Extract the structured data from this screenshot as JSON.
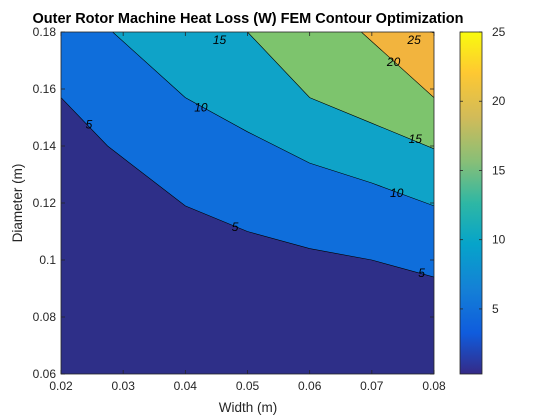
{
  "colors": {
    "band_0_5": "#2e2f88",
    "band_5_10": "#0f6edb",
    "band_10_15": "#0fa3c8",
    "band_15_20": "#7dc46d",
    "band_20_25": "#f2b43e",
    "contour_line": "#000000",
    "axis": "#262626"
  },
  "chart_data": {
    "type": "contour",
    "title": "Outer Rotor Machine Heat Loss (W) FEM Contour Optimization",
    "xlabel": "Width (m)",
    "ylabel": "Diameter (m)",
    "xlim": [
      0.02,
      0.08
    ],
    "ylim": [
      0.06,
      0.18
    ],
    "xticks": [
      "0.02",
      "0.03",
      "0.04",
      "0.05",
      "0.06",
      "0.07",
      "0.08"
    ],
    "yticks": [
      "0.06",
      "0.08",
      "0.1",
      "0.12",
      "0.14",
      "0.16",
      "0.18"
    ],
    "colorbar": {
      "range": [
        0.3,
        25
      ],
      "ticks": [
        "5",
        "10",
        "15",
        "20",
        "25"
      ]
    },
    "levels": [
      {
        "level": 5,
        "label": "5",
        "points": [
          [
            0.02,
            0.157
          ],
          [
            0.0275,
            0.14
          ],
          [
            0.04,
            0.119
          ],
          [
            0.05,
            0.11
          ],
          [
            0.06,
            0.104
          ],
          [
            0.07,
            0.1
          ],
          [
            0.08,
            0.094
          ]
        ]
      },
      {
        "level": 10,
        "label": "10",
        "points": [
          [
            0.0283,
            0.18
          ],
          [
            0.04,
            0.157
          ],
          [
            0.05,
            0.145
          ],
          [
            0.06,
            0.134
          ],
          [
            0.07,
            0.127
          ],
          [
            0.08,
            0.119
          ]
        ]
      },
      {
        "level": 15,
        "label": "15",
        "points": [
          [
            0.05,
            0.18
          ],
          [
            0.06,
            0.157
          ],
          [
            0.07,
            0.148
          ],
          [
            0.08,
            0.139
          ]
        ]
      },
      {
        "level": 20,
        "label": "20",
        "points": [
          [
            0.0683,
            0.18
          ],
          [
            0.08,
            0.157
          ]
        ]
      },
      {
        "level": 25,
        "label": "25",
        "points": [
          [
            0.0795,
            0.18
          ],
          [
            0.08,
            0.1797
          ]
        ]
      }
    ]
  }
}
